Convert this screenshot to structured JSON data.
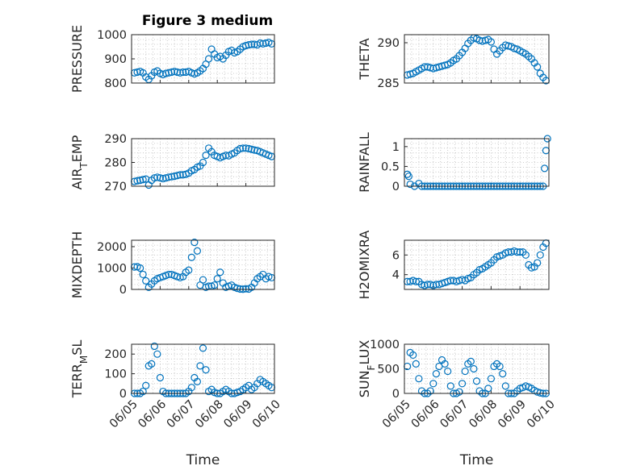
{
  "figure_title": "Figure 3 medium",
  "marker_color": "#0072BD",
  "chart_data": [
    {
      "type": "scatter",
      "ylabel": "PRESSURE",
      "ylim": [
        800,
        1000
      ],
      "yticks": [
        800,
        900,
        1000
      ],
      "xlim": [
        0,
        5
      ],
      "x": [
        0.1,
        0.2,
        0.3,
        0.4,
        0.5,
        0.6,
        0.7,
        0.8,
        0.9,
        1.0,
        1.1,
        1.2,
        1.3,
        1.4,
        1.5,
        1.6,
        1.7,
        1.8,
        1.9,
        2.0,
        2.1,
        2.2,
        2.3,
        2.4,
        2.5,
        2.6,
        2.7,
        2.8,
        2.9,
        3.0,
        3.1,
        3.2,
        3.3,
        3.4,
        3.5,
        3.6,
        3.7,
        3.8,
        3.9,
        4.0,
        4.1,
        4.2,
        4.3,
        4.4,
        4.5,
        4.6,
        4.7,
        4.8,
        4.9
      ],
      "y": [
        842,
        845,
        848,
        842,
        825,
        815,
        830,
        845,
        850,
        840,
        835,
        840,
        842,
        845,
        848,
        845,
        842,
        845,
        845,
        848,
        842,
        838,
        842,
        850,
        860,
        878,
        900,
        940,
        920,
        905,
        910,
        900,
        915,
        930,
        935,
        925,
        930,
        940,
        950,
        955,
        958,
        960,
        960,
        958,
        965,
        962,
        965,
        968,
        962
      ]
    },
    {
      "type": "scatter",
      "ylabel": "THETA",
      "ylim": [
        285,
        291
      ],
      "yticks": [
        285,
        290
      ],
      "xlim": [
        0,
        5
      ],
      "x": [
        0.1,
        0.2,
        0.3,
        0.4,
        0.5,
        0.6,
        0.7,
        0.8,
        0.9,
        1.0,
        1.1,
        1.2,
        1.3,
        1.4,
        1.5,
        1.6,
        1.7,
        1.8,
        1.9,
        2.0,
        2.1,
        2.2,
        2.3,
        2.4,
        2.5,
        2.6,
        2.7,
        2.8,
        2.9,
        3.0,
        3.1,
        3.2,
        3.3,
        3.4,
        3.5,
        3.6,
        3.7,
        3.8,
        3.9,
        4.0,
        4.1,
        4.2,
        4.3,
        4.4,
        4.5,
        4.6,
        4.7,
        4.8,
        4.9
      ],
      "y": [
        286.0,
        286.1,
        286.2,
        286.4,
        286.6,
        286.8,
        287.0,
        287.0,
        286.9,
        286.8,
        286.9,
        287.0,
        287.1,
        287.2,
        287.3,
        287.5,
        287.8,
        288.0,
        288.4,
        288.8,
        289.3,
        289.9,
        290.3,
        290.6,
        290.5,
        290.3,
        290.2,
        290.3,
        290.4,
        290.1,
        289.2,
        288.6,
        289.0,
        289.4,
        289.7,
        289.6,
        289.5,
        289.3,
        289.2,
        289.0,
        288.8,
        288.6,
        288.3,
        288.0,
        287.5,
        287.0,
        286.2,
        285.7,
        285.3
      ]
    },
    {
      "type": "scatter",
      "ylabel": "AIR_TEMP",
      "ylim": [
        270,
        290
      ],
      "yticks": [
        270,
        280,
        290
      ],
      "xlim": [
        0,
        5
      ],
      "x": [
        0.1,
        0.2,
        0.3,
        0.4,
        0.5,
        0.6,
        0.7,
        0.8,
        0.9,
        1.0,
        1.1,
        1.2,
        1.3,
        1.4,
        1.5,
        1.6,
        1.7,
        1.8,
        1.9,
        2.0,
        2.1,
        2.2,
        2.3,
        2.4,
        2.5,
        2.6,
        2.7,
        2.8,
        2.9,
        3.0,
        3.1,
        3.2,
        3.3,
        3.4,
        3.5,
        3.6,
        3.7,
        3.8,
        3.9,
        4.0,
        4.1,
        4.2,
        4.3,
        4.4,
        4.5,
        4.6,
        4.7,
        4.8,
        4.9
      ],
      "y": [
        272.0,
        272.3,
        272.5,
        272.8,
        273.0,
        270.5,
        272.5,
        273.5,
        273.8,
        273.5,
        273.2,
        273.5,
        273.8,
        274.0,
        274.2,
        274.5,
        274.8,
        274.8,
        275.0,
        275.5,
        276.5,
        277.0,
        278.0,
        278.5,
        280.0,
        283.0,
        286.0,
        284.5,
        283.0,
        282.5,
        282.0,
        282.5,
        283.0,
        282.8,
        283.5,
        284.0,
        285.0,
        285.8,
        286.0,
        286.0,
        285.8,
        285.5,
        285.2,
        285.0,
        284.5,
        284.0,
        283.5,
        283.0,
        282.5
      ]
    },
    {
      "type": "scatter",
      "ylabel": "RAINFALL",
      "ylim": [
        0,
        1.2
      ],
      "yticks": [
        0,
        0.5,
        1
      ],
      "xlim": [
        0,
        5
      ],
      "x": [
        0.1,
        0.15,
        0.2,
        0.35,
        0.5,
        0.6,
        0.7,
        0.8,
        0.9,
        1.0,
        1.1,
        1.2,
        1.3,
        1.4,
        1.5,
        1.6,
        1.7,
        1.8,
        1.9,
        2.0,
        2.1,
        2.2,
        2.3,
        2.4,
        2.5,
        2.6,
        2.7,
        2.8,
        2.9,
        3.0,
        3.1,
        3.2,
        3.3,
        3.4,
        3.5,
        3.6,
        3.7,
        3.8,
        3.9,
        4.0,
        4.1,
        4.2,
        4.3,
        4.4,
        4.5,
        4.6,
        4.7,
        4.8,
        4.85,
        4.9,
        4.95
      ],
      "y": [
        0.3,
        0.25,
        0.05,
        0.0,
        0.07,
        0.0,
        0.0,
        0.0,
        0.0,
        0.0,
        0.0,
        0.0,
        0.0,
        0.0,
        0.0,
        0.0,
        0.0,
        0.0,
        0.0,
        0.0,
        0.0,
        0.0,
        0.0,
        0.0,
        0.0,
        0.0,
        0.0,
        0.0,
        0.0,
        0.0,
        0.0,
        0.0,
        0.0,
        0.0,
        0.0,
        0.0,
        0.0,
        0.0,
        0.0,
        0.0,
        0.0,
        0.0,
        0.0,
        0.0,
        0.0,
        0.0,
        0.0,
        0.0,
        0.45,
        0.9,
        1.2
      ]
    },
    {
      "type": "scatter",
      "ylabel": "MIXDEPTH",
      "ylim": [
        0,
        2300
      ],
      "yticks": [
        0,
        1000,
        2000
      ],
      "xlim": [
        0,
        5
      ],
      "x": [
        0.1,
        0.2,
        0.3,
        0.4,
        0.5,
        0.6,
        0.7,
        0.8,
        0.9,
        1.0,
        1.1,
        1.2,
        1.3,
        1.4,
        1.5,
        1.6,
        1.7,
        1.8,
        1.9,
        2.0,
        2.1,
        2.2,
        2.3,
        2.4,
        2.5,
        2.6,
        2.7,
        2.8,
        2.9,
        3.0,
        3.1,
        3.2,
        3.3,
        3.4,
        3.5,
        3.6,
        3.7,
        3.8,
        3.9,
        4.0,
        4.1,
        4.2,
        4.3,
        4.4,
        4.5,
        4.6,
        4.7,
        4.8,
        4.9
      ],
      "y": [
        1050,
        1060,
        1000,
        700,
        400,
        100,
        250,
        400,
        500,
        550,
        600,
        650,
        700,
        700,
        650,
        600,
        550,
        600,
        800,
        900,
        1500,
        2200,
        1800,
        200,
        450,
        100,
        150,
        150,
        200,
        500,
        800,
        300,
        100,
        150,
        200,
        100,
        50,
        20,
        10,
        30,
        20,
        100,
        300,
        500,
        600,
        700,
        500,
        600,
        550
      ]
    },
    {
      "type": "scatter",
      "ylabel": "H2OMIXRA",
      "ylim": [
        2.5,
        7.5
      ],
      "yticks": [
        4,
        6
      ],
      "xlim": [
        0,
        5
      ],
      "x": [
        0.1,
        0.2,
        0.3,
        0.4,
        0.5,
        0.6,
        0.7,
        0.8,
        0.9,
        1.0,
        1.1,
        1.2,
        1.3,
        1.4,
        1.5,
        1.6,
        1.7,
        1.8,
        1.9,
        2.0,
        2.1,
        2.2,
        2.3,
        2.4,
        2.5,
        2.6,
        2.7,
        2.8,
        2.9,
        3.0,
        3.1,
        3.2,
        3.3,
        3.4,
        3.5,
        3.6,
        3.7,
        3.8,
        3.9,
        4.0,
        4.1,
        4.2,
        4.3,
        4.4,
        4.5,
        4.6,
        4.7,
        4.8,
        4.9
      ],
      "y": [
        3.3,
        3.3,
        3.4,
        3.3,
        3.3,
        3.0,
        2.9,
        3.0,
        3.0,
        2.9,
        3.0,
        3.0,
        3.1,
        3.2,
        3.3,
        3.4,
        3.4,
        3.3,
        3.4,
        3.5,
        3.4,
        3.6,
        3.7,
        4.0,
        4.2,
        4.5,
        4.6,
        4.8,
        5.0,
        5.2,
        5.5,
        5.8,
        5.9,
        6.0,
        6.2,
        6.3,
        6.3,
        6.4,
        6.3,
        6.3,
        6.3,
        6.0,
        5.0,
        4.7,
        4.8,
        5.2,
        6.0,
        6.8,
        7.2
      ]
    },
    {
      "type": "scatter",
      "ylabel": "TERR_MSL",
      "ylim": [
        0,
        250
      ],
      "yticks": [
        0,
        100,
        200
      ],
      "xlim": [
        0,
        5
      ],
      "x": [
        0.1,
        0.2,
        0.3,
        0.4,
        0.5,
        0.6,
        0.7,
        0.8,
        0.9,
        1.0,
        1.1,
        1.2,
        1.3,
        1.4,
        1.5,
        1.6,
        1.7,
        1.8,
        1.9,
        2.0,
        2.1,
        2.2,
        2.3,
        2.4,
        2.5,
        2.6,
        2.7,
        2.8,
        2.9,
        3.0,
        3.1,
        3.2,
        3.3,
        3.4,
        3.5,
        3.6,
        3.7,
        3.8,
        3.9,
        4.0,
        4.1,
        4.2,
        4.3,
        4.4,
        4.5,
        4.6,
        4.7,
        4.8,
        4.9
      ],
      "y": [
        0,
        0,
        0,
        10,
        40,
        140,
        150,
        240,
        200,
        80,
        10,
        0,
        0,
        0,
        0,
        0,
        0,
        0,
        0,
        10,
        30,
        80,
        60,
        140,
        230,
        120,
        10,
        20,
        5,
        0,
        0,
        10,
        20,
        10,
        0,
        0,
        5,
        10,
        20,
        30,
        40,
        20,
        30,
        50,
        70,
        60,
        50,
        40,
        30
      ]
    },
    {
      "type": "scatter",
      "ylabel": "SUN_FLUX",
      "ylim": [
        0,
        1000
      ],
      "yticks": [
        0,
        500,
        1000
      ],
      "xlim": [
        0,
        5
      ],
      "x": [
        0.1,
        0.2,
        0.3,
        0.4,
        0.5,
        0.6,
        0.7,
        0.8,
        0.9,
        1.0,
        1.1,
        1.2,
        1.3,
        1.4,
        1.5,
        1.6,
        1.7,
        1.8,
        1.9,
        2.0,
        2.1,
        2.2,
        2.3,
        2.4,
        2.5,
        2.6,
        2.7,
        2.8,
        2.9,
        3.0,
        3.1,
        3.2,
        3.3,
        3.4,
        3.5,
        3.6,
        3.7,
        3.8,
        3.9,
        4.0,
        4.1,
        4.2,
        4.3,
        4.4,
        4.5,
        4.6,
        4.7,
        4.8,
        4.9
      ],
      "y": [
        550,
        830,
        780,
        600,
        300,
        50,
        0,
        0,
        50,
        200,
        400,
        550,
        680,
        600,
        450,
        150,
        0,
        0,
        30,
        200,
        450,
        600,
        650,
        500,
        250,
        50,
        0,
        0,
        100,
        300,
        550,
        600,
        550,
        400,
        150,
        0,
        0,
        0,
        50,
        100,
        120,
        150,
        130,
        100,
        60,
        30,
        10,
        0,
        0
      ]
    }
  ],
  "xticks": [
    "06/05",
    "06/06",
    "06/07",
    "06/08",
    "06/09",
    "06/10"
  ],
  "xlabel": "Time"
}
